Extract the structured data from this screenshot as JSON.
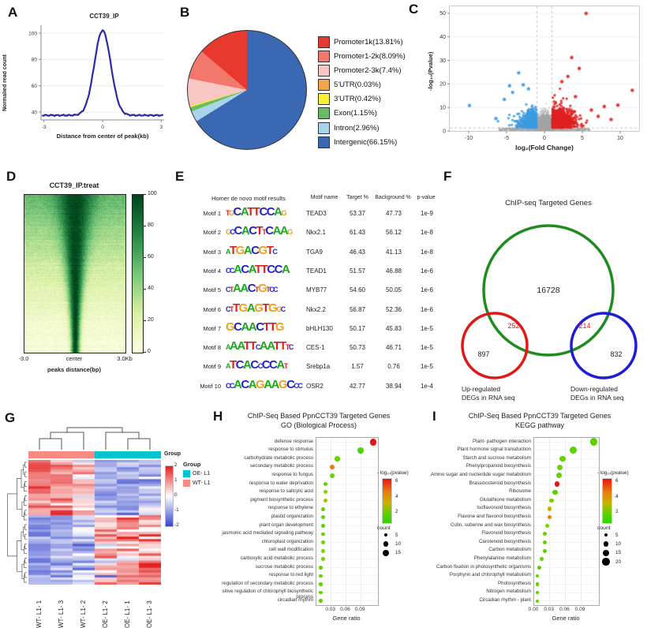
{
  "chart_data": [
    {
      "id": "A",
      "type": "line",
      "title": "CCT39_IP",
      "x_label": "Distance from center of peak(kb)",
      "y_label": "Normalied read count",
      "x_ticks": [
        -3,
        0,
        3
      ],
      "y_ticks": [
        40,
        60,
        80,
        100
      ],
      "x_range": [
        -3.15,
        3.15
      ],
      "y_range": [
        34,
        106
      ],
      "baseline": 37.5,
      "peak": 102,
      "sigma": 0.42,
      "line_color": "#2b2ba6"
    },
    {
      "id": "B",
      "type": "pie",
      "slices": [
        {
          "label": "Promoter1k(13.81%)",
          "value": 13.81,
          "color": "#e8392f"
        },
        {
          "label": "Promoter1-2k(8.09%)",
          "value": 8.09,
          "color": "#f2776d"
        },
        {
          "label": "Promoter2-3k(7.4%)",
          "value": 7.4,
          "color": "#f9c7c3"
        },
        {
          "label": "5'UTR(0.03%)",
          "value": 0.03,
          "color": "#f2a54c"
        },
        {
          "label": "3'UTR(0.42%)",
          "value": 0.42,
          "color": "#f7ef3a"
        },
        {
          "label": "Exon(1.15%)",
          "value": 1.15,
          "color": "#67bd63"
        },
        {
          "label": "Intron(2.96%)",
          "value": 2.96,
          "color": "#a9d4e9"
        },
        {
          "label": "Intergenic(66.15%)",
          "value": 66.15,
          "color": "#3a68b2"
        }
      ],
      "clockwise_from_top": [
        7,
        6,
        5,
        4,
        3,
        2,
        1,
        0
      ],
      "outline_color": "#333333"
    },
    {
      "id": "C",
      "type": "scatter",
      "subtype": "volcano",
      "x_label": "log₂(Fold Change)",
      "y_label": "-log₁₀(Pvalue)",
      "x_ticks": [
        -10,
        -5,
        0,
        5,
        10
      ],
      "y_ticks": [
        0,
        10,
        20,
        30,
        40,
        50
      ],
      "x_range": [
        -12.5,
        12.5
      ],
      "y_range": [
        0,
        53
      ],
      "thresholds": {
        "x": [
          -1,
          1
        ],
        "y": 1.3
      },
      "colors": {
        "up": "#e02121",
        "down": "#3d9be0",
        "ns": "#a6a6a6"
      },
      "generation": {
        "seed": 7,
        "ns_core": 2600,
        "ns_low": 500,
        "down": 620,
        "up": 950
      },
      "notable_points": [
        {
          "x": 5.5,
          "y": 50,
          "class": "up"
        },
        {
          "x": 3.6,
          "y": 31.2,
          "class": "up"
        },
        {
          "x": 4.6,
          "y": 26.6,
          "class": "up"
        },
        {
          "x": 3.1,
          "y": 23.2,
          "class": "up"
        },
        {
          "x": 2.3,
          "y": 21,
          "class": "up"
        },
        {
          "x": 11.6,
          "y": 17.3,
          "class": "up"
        },
        {
          "x": 4.1,
          "y": 14.6,
          "class": "up"
        },
        {
          "x": 9.7,
          "y": 11,
          "class": "up"
        },
        {
          "x": 7.9,
          "y": 10.4,
          "class": "up"
        },
        {
          "x": 6.2,
          "y": 8.9,
          "class": "up"
        },
        {
          "x": 7.1,
          "y": 6.2,
          "class": "up"
        },
        {
          "x": 8.8,
          "y": 4.9,
          "class": "up"
        },
        {
          "x": -9.9,
          "y": 10.8,
          "class": "down"
        },
        {
          "x": -3.4,
          "y": 24.7,
          "class": "down"
        },
        {
          "x": -2.8,
          "y": 19.6,
          "class": "down"
        },
        {
          "x": -4.6,
          "y": 19.2,
          "class": "down"
        },
        {
          "x": -2.1,
          "y": 17.9,
          "class": "down"
        },
        {
          "x": -4.2,
          "y": 16.4,
          "class": "down"
        },
        {
          "x": -5.3,
          "y": 13.4,
          "class": "down"
        },
        {
          "x": -6.4,
          "y": 5.3,
          "class": "down"
        }
      ]
    },
    {
      "id": "D",
      "type": "heatmap",
      "title": "CCT39_IP.treat",
      "x_ticks": [
        "-3.0",
        "center",
        "3.0Kb"
      ],
      "x_label": "peaks distance(bp)",
      "colorbar_ticks": [
        0,
        20,
        40,
        60,
        80,
        100
      ],
      "colormap": [
        "#ffffe5",
        "#d9f0a3",
        "#78c679",
        "#238443",
        "#00441b"
      ],
      "seed": 11
    },
    {
      "id": "E",
      "type": "table",
      "title": "Homer de novo motif results",
      "columns": [
        "Motif name",
        "Target %",
        "Background %",
        "p-value"
      ],
      "base_colors": {
        "A": "#1ca81c",
        "C": "#2424cc",
        "G": "#eea01e",
        "T": "#d62222"
      },
      "rows": [
        {
          "motif": "Motif 1",
          "seq": "tgCATTCCAg",
          "name": "TEAD3",
          "target": "53.37",
          "background": "47.73",
          "pvalue": "1e-9"
        },
        {
          "motif": "Motif 2",
          "seq": "gcCACTtCAAg",
          "name": "Nkx2.1",
          "target": "61.43",
          "background": "56.12",
          "pvalue": "1e-8"
        },
        {
          "motif": "Motif 3",
          "seq": "aTGACGTc",
          "name": "TGA9",
          "target": "46.43",
          "background": "41.13",
          "pvalue": "1e-8"
        },
        {
          "motif": "Motif 4",
          "seq": "ccACATTCCA",
          "name": "TEAD1",
          "target": "51.57",
          "background": "46.88",
          "pvalue": "1e-6"
        },
        {
          "motif": "Motif 5",
          "seq": "ctAACtGtcc",
          "name": "MYB77",
          "target": "54.60",
          "background": "50.05",
          "pvalue": "1e-6"
        },
        {
          "motif": "Motif 6",
          "seq": "ctTGAGTGgc",
          "name": "Nkx2.2",
          "target": "56.87",
          "background": "52.36",
          "pvalue": "1e-6"
        },
        {
          "motif": "Motif 7",
          "seq": "GCAACTTG",
          "name": "bHLH130",
          "target": "50.17",
          "background": "45.83",
          "pvalue": "1e-5"
        },
        {
          "motif": "Motif 8",
          "seq": "aAATTcAATTtc",
          "name": "CES-1",
          "target": "50.73",
          "background": "46.71",
          "pvalue": "1e-5"
        },
        {
          "motif": "Motif 9",
          "seq": "aTCACcCCAt",
          "name": "Srebp1a",
          "target": "1.57",
          "background": "0.76",
          "pvalue": "1e-5"
        },
        {
          "motif": "Motif 10",
          "seq": "ccACAGAAGCcc",
          "name": "OSR2",
          "target": "42.77",
          "background": "38.94",
          "pvalue": "1e-4"
        }
      ]
    },
    {
      "id": "F",
      "type": "venn",
      "title": "ChIP-seq Targeted Genes",
      "sets": [
        {
          "name": "ChIP-seq Targeted Genes",
          "color": "#1e8c1e",
          "unique": "16728"
        },
        {
          "name": "Up-regulated DEGs in RNA seq",
          "color": "#e21717",
          "unique": "897",
          "overlap_with_chip": "252"
        },
        {
          "name": "Down-regulated DEGs in RNA seq",
          "color": "#1d1dd8",
          "unique": "832",
          "overlap_with_chip": "214"
        }
      ],
      "labels": {
        "up_line1": "Up-regulated",
        "up_line2": "DEGs in RNA seq",
        "down_line1": "Down-regulated",
        "down_line2": "DEGs in RNA seq"
      },
      "overlap_text_color": "#e21717"
    },
    {
      "id": "G",
      "type": "heatmap",
      "subtype": "clustered",
      "columns": [
        "WT- L1- 1",
        "WT- L1- 3",
        "WT- L1- 2",
        "OE- L1- 2",
        "OE- L1- 1",
        "OE- L1- 3"
      ],
      "annotation_label": "Group",
      "legend_title": "Group",
      "groups": [
        {
          "name": "OE- L1",
          "color": "#00c5cf"
        },
        {
          "name": "WT- L1",
          "color": "#f98a82"
        }
      ],
      "col_group_assignment": [
        "WT",
        "WT",
        "WT",
        "OE",
        "OE",
        "OE"
      ],
      "scale_ticks": [
        2,
        1,
        0,
        -1,
        -2
      ],
      "scale_colors": {
        "high": "#e3201f",
        "mid": "#ffffff",
        "low": "#3545cc"
      },
      "seed": 5,
      "rows": 52
    },
    {
      "id": "H",
      "type": "scatter",
      "subtype": "dotplot",
      "title": "ChIP-Seq Based PpnCCT39 Targeted Genes",
      "subtitle": "GO (Biological Process)",
      "x_label": "Gene ratio",
      "x_ticks": [
        0.03,
        0.06,
        0.09
      ],
      "x_range": [
        0,
        0.125
      ],
      "pvalue_legend_title": "- log₁₀(pvalue)",
      "pvalue_ticks": [
        6,
        4,
        2
      ],
      "count_legend_title": "count",
      "count_ticks": [
        5,
        10,
        15
      ],
      "categories": [
        {
          "label": "defense response",
          "ratio": 0.115,
          "nlp": 6.0,
          "count": 16
        },
        {
          "label": "response to stimulus",
          "ratio": 0.09,
          "nlp": 1.5,
          "count": 15
        },
        {
          "label": "carbohydrate metabolic process",
          "ratio": 0.042,
          "nlp": 2.0,
          "count": 10
        },
        {
          "label": "secondary metabolic process",
          "ratio": 0.032,
          "nlp": 5.0,
          "count": 9
        },
        {
          "label": "response to fungus",
          "ratio": 0.032,
          "nlp": 2.2,
          "count": 9
        },
        {
          "label": "response to water deprivation",
          "ratio": 0.018,
          "nlp": 2.0,
          "count": 6
        },
        {
          "label": "response to salicylic acid",
          "ratio": 0.018,
          "nlp": 2.8,
          "count": 6
        },
        {
          "label": "pigment biosynthetic process",
          "ratio": 0.018,
          "nlp": 3.5,
          "count": 6
        },
        {
          "label": "response to ethylene",
          "ratio": 0.013,
          "nlp": 2.0,
          "count": 5
        },
        {
          "label": "plastid organization",
          "ratio": 0.013,
          "nlp": 2.0,
          "count": 5
        },
        {
          "label": "plant organ development",
          "ratio": 0.013,
          "nlp": 1.8,
          "count": 5
        },
        {
          "label": "jasmonic acid mediated signaling pathway",
          "ratio": 0.013,
          "nlp": 2.0,
          "count": 5
        },
        {
          "label": "chloroplast organization",
          "ratio": 0.013,
          "nlp": 2.2,
          "count": 5
        },
        {
          "label": "cell wall modification",
          "ratio": 0.013,
          "nlp": 2.5,
          "count": 5
        },
        {
          "label": "carboxylic acid metabolic process",
          "ratio": 0.013,
          "nlp": 2.2,
          "count": 5
        },
        {
          "label": "sucrose metabolic process",
          "ratio": 0.009,
          "nlp": 2.0,
          "count": 4
        },
        {
          "label": "response to red light",
          "ratio": 0.009,
          "nlp": 2.2,
          "count": 4
        },
        {
          "label": "regulation of secondary metabolic process",
          "ratio": 0.009,
          "nlp": 2.0,
          "count": 4
        },
        {
          "label": "sitive regulation of chlorophyll biosynthetic process",
          "ratio": 0.009,
          "nlp": 2.2,
          "count": 4
        },
        {
          "label": "circadian rhythm",
          "ratio": 0.009,
          "nlp": 2.0,
          "count": 4
        }
      ]
    },
    {
      "id": "I",
      "type": "scatter",
      "subtype": "dotplot",
      "title": "ChIP-Seq Based PpnCCT39 Targeted Genes",
      "subtitle": "KEGG pathway",
      "x_label": "Gene ratio",
      "x_ticks": [
        0.0,
        0.03,
        0.06,
        0.09
      ],
      "x_range": [
        0,
        0.125
      ],
      "pvalue_legend_title": "- log₁₀(pvalue)",
      "pvalue_ticks": [
        6,
        4,
        2
      ],
      "count_legend_title": "count",
      "count_ticks": [
        5,
        10,
        15,
        20
      ],
      "categories": [
        {
          "label": "Plant- pathogen interaction",
          "ratio": 0.115,
          "nlp": 1.8,
          "count": 20
        },
        {
          "label": "Plant hormone signal transduction",
          "ratio": 0.075,
          "nlp": 1.8,
          "count": 18
        },
        {
          "label": "Starch and sucrose metabolism",
          "ratio": 0.055,
          "nlp": 2.0,
          "count": 13
        },
        {
          "label": "Phenylpropanoid biosynthesis",
          "ratio": 0.05,
          "nlp": 2.2,
          "count": 12
        },
        {
          "label": "Amino sugar and nucleotide sugar metabolism",
          "ratio": 0.048,
          "nlp": 2.0,
          "count": 12
        },
        {
          "label": "Brassinosteroid biosynthesis",
          "ratio": 0.044,
          "nlp": 6.0,
          "count": 10
        },
        {
          "label": "Ribosome",
          "ratio": 0.04,
          "nlp": 1.8,
          "count": 11
        },
        {
          "label": "Glutathione metabolism",
          "ratio": 0.034,
          "nlp": 2.5,
          "count": 8
        },
        {
          "label": "Isoflavonoid biosynthesis",
          "ratio": 0.03,
          "nlp": 4.0,
          "count": 7
        },
        {
          "label": "Flavone and flavonol biosynthesis",
          "ratio": 0.03,
          "nlp": 5.0,
          "count": 7
        },
        {
          "label": "Cutin, suberine and wax biosynthesis",
          "ratio": 0.025,
          "nlp": 2.5,
          "count": 6
        },
        {
          "label": "Flavonoid biosynthesis",
          "ratio": 0.02,
          "nlp": 2.2,
          "count": 6
        },
        {
          "label": "Carotenoid biosynthesis",
          "ratio": 0.02,
          "nlp": 2.0,
          "count": 5
        },
        {
          "label": "Carbon metabolism",
          "ratio": 0.02,
          "nlp": 1.8,
          "count": 6
        },
        {
          "label": "Phenylalanine metabolism",
          "ratio": 0.015,
          "nlp": 2.0,
          "count": 5
        },
        {
          "label": "Carbon fixation in photosynthetic organisms",
          "ratio": 0.01,
          "nlp": 2.0,
          "count": 4
        },
        {
          "label": "Porphyrin and chlorophyll metabolism",
          "ratio": 0.006,
          "nlp": 2.2,
          "count": 3
        },
        {
          "label": "Photosynthesis",
          "ratio": 0.006,
          "nlp": 2.0,
          "count": 3
        },
        {
          "label": "Nitrogen metabolism",
          "ratio": 0.006,
          "nlp": 2.0,
          "count": 3
        },
        {
          "label": "Circadian rhythm - plant",
          "ratio": 0.006,
          "nlp": 2.0,
          "count": 3
        }
      ]
    }
  ]
}
